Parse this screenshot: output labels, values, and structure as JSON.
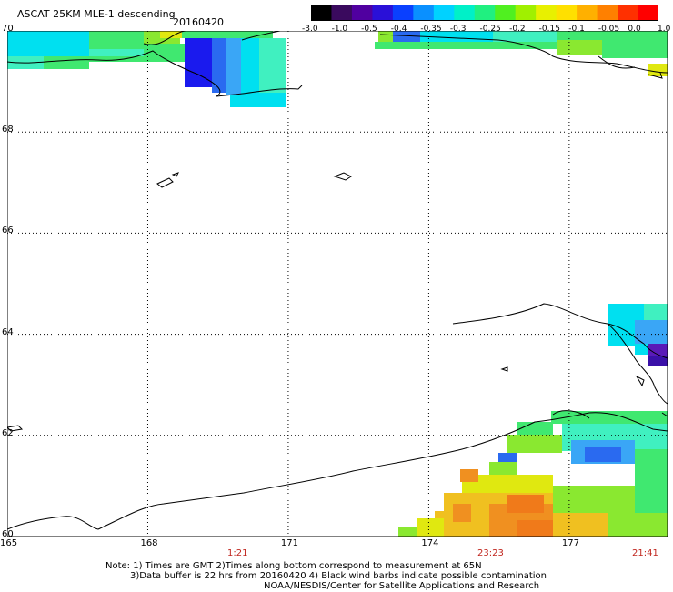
{
  "header": {
    "title": "ASCAT 25KM MLE-1 descending",
    "date": "20160420"
  },
  "colorbar": {
    "labels": [
      "-3.0",
      "-1.0",
      "-0.5",
      "-0.4",
      "-0.35",
      "-0.3",
      "-0.25",
      "-0.2",
      "-0.15",
      "-0.1",
      "-0.05",
      "0.0",
      "1.0"
    ],
    "colors": [
      "#000000",
      "#3a0a5e",
      "#5000a0",
      "#2a10d8",
      "#0a40ff",
      "#0a90ff",
      "#00d2ff",
      "#00f0c8",
      "#20f080",
      "#50f020",
      "#a0f000",
      "#e8f000",
      "#ffe000",
      "#ffb000",
      "#ff8000",
      "#ff3000",
      "#ff0000"
    ]
  },
  "axes": {
    "lat_labels": [
      "70",
      "68",
      "66",
      "64",
      "62",
      "60"
    ],
    "lon_labels": [
      "165",
      "168",
      "171",
      "174",
      "177"
    ],
    "lon_range": [
      165,
      179.1
    ],
    "lat_range": [
      60,
      70
    ]
  },
  "times": [
    "1:21",
    "23:23",
    "21:41"
  ],
  "notes": {
    "line1": "Note: 1) Times are GMT 2)Times along bottom correspond to measurement at 65N",
    "line2": "3)Data buffer is 22 hrs from 20160420 4) Black wind barbs indicate possible contamination",
    "line3": "NOAA/NESDIS/Center for Satellite Applications and Research"
  },
  "map_colors": {
    "dark_blue": "#1a1aee",
    "blue": "#2a6af0",
    "light_blue": "#3aa6f6",
    "cyan": "#00e0f0",
    "aqua": "#40f0c0",
    "green": "#40e870",
    "lime": "#8ae830",
    "yellow": "#e0e810",
    "gold": "#f0c020",
    "orange": "#f09020",
    "dark_orange": "#f07a1a",
    "purple": "#3a10a8",
    "violet": "#5a1ab8"
  }
}
